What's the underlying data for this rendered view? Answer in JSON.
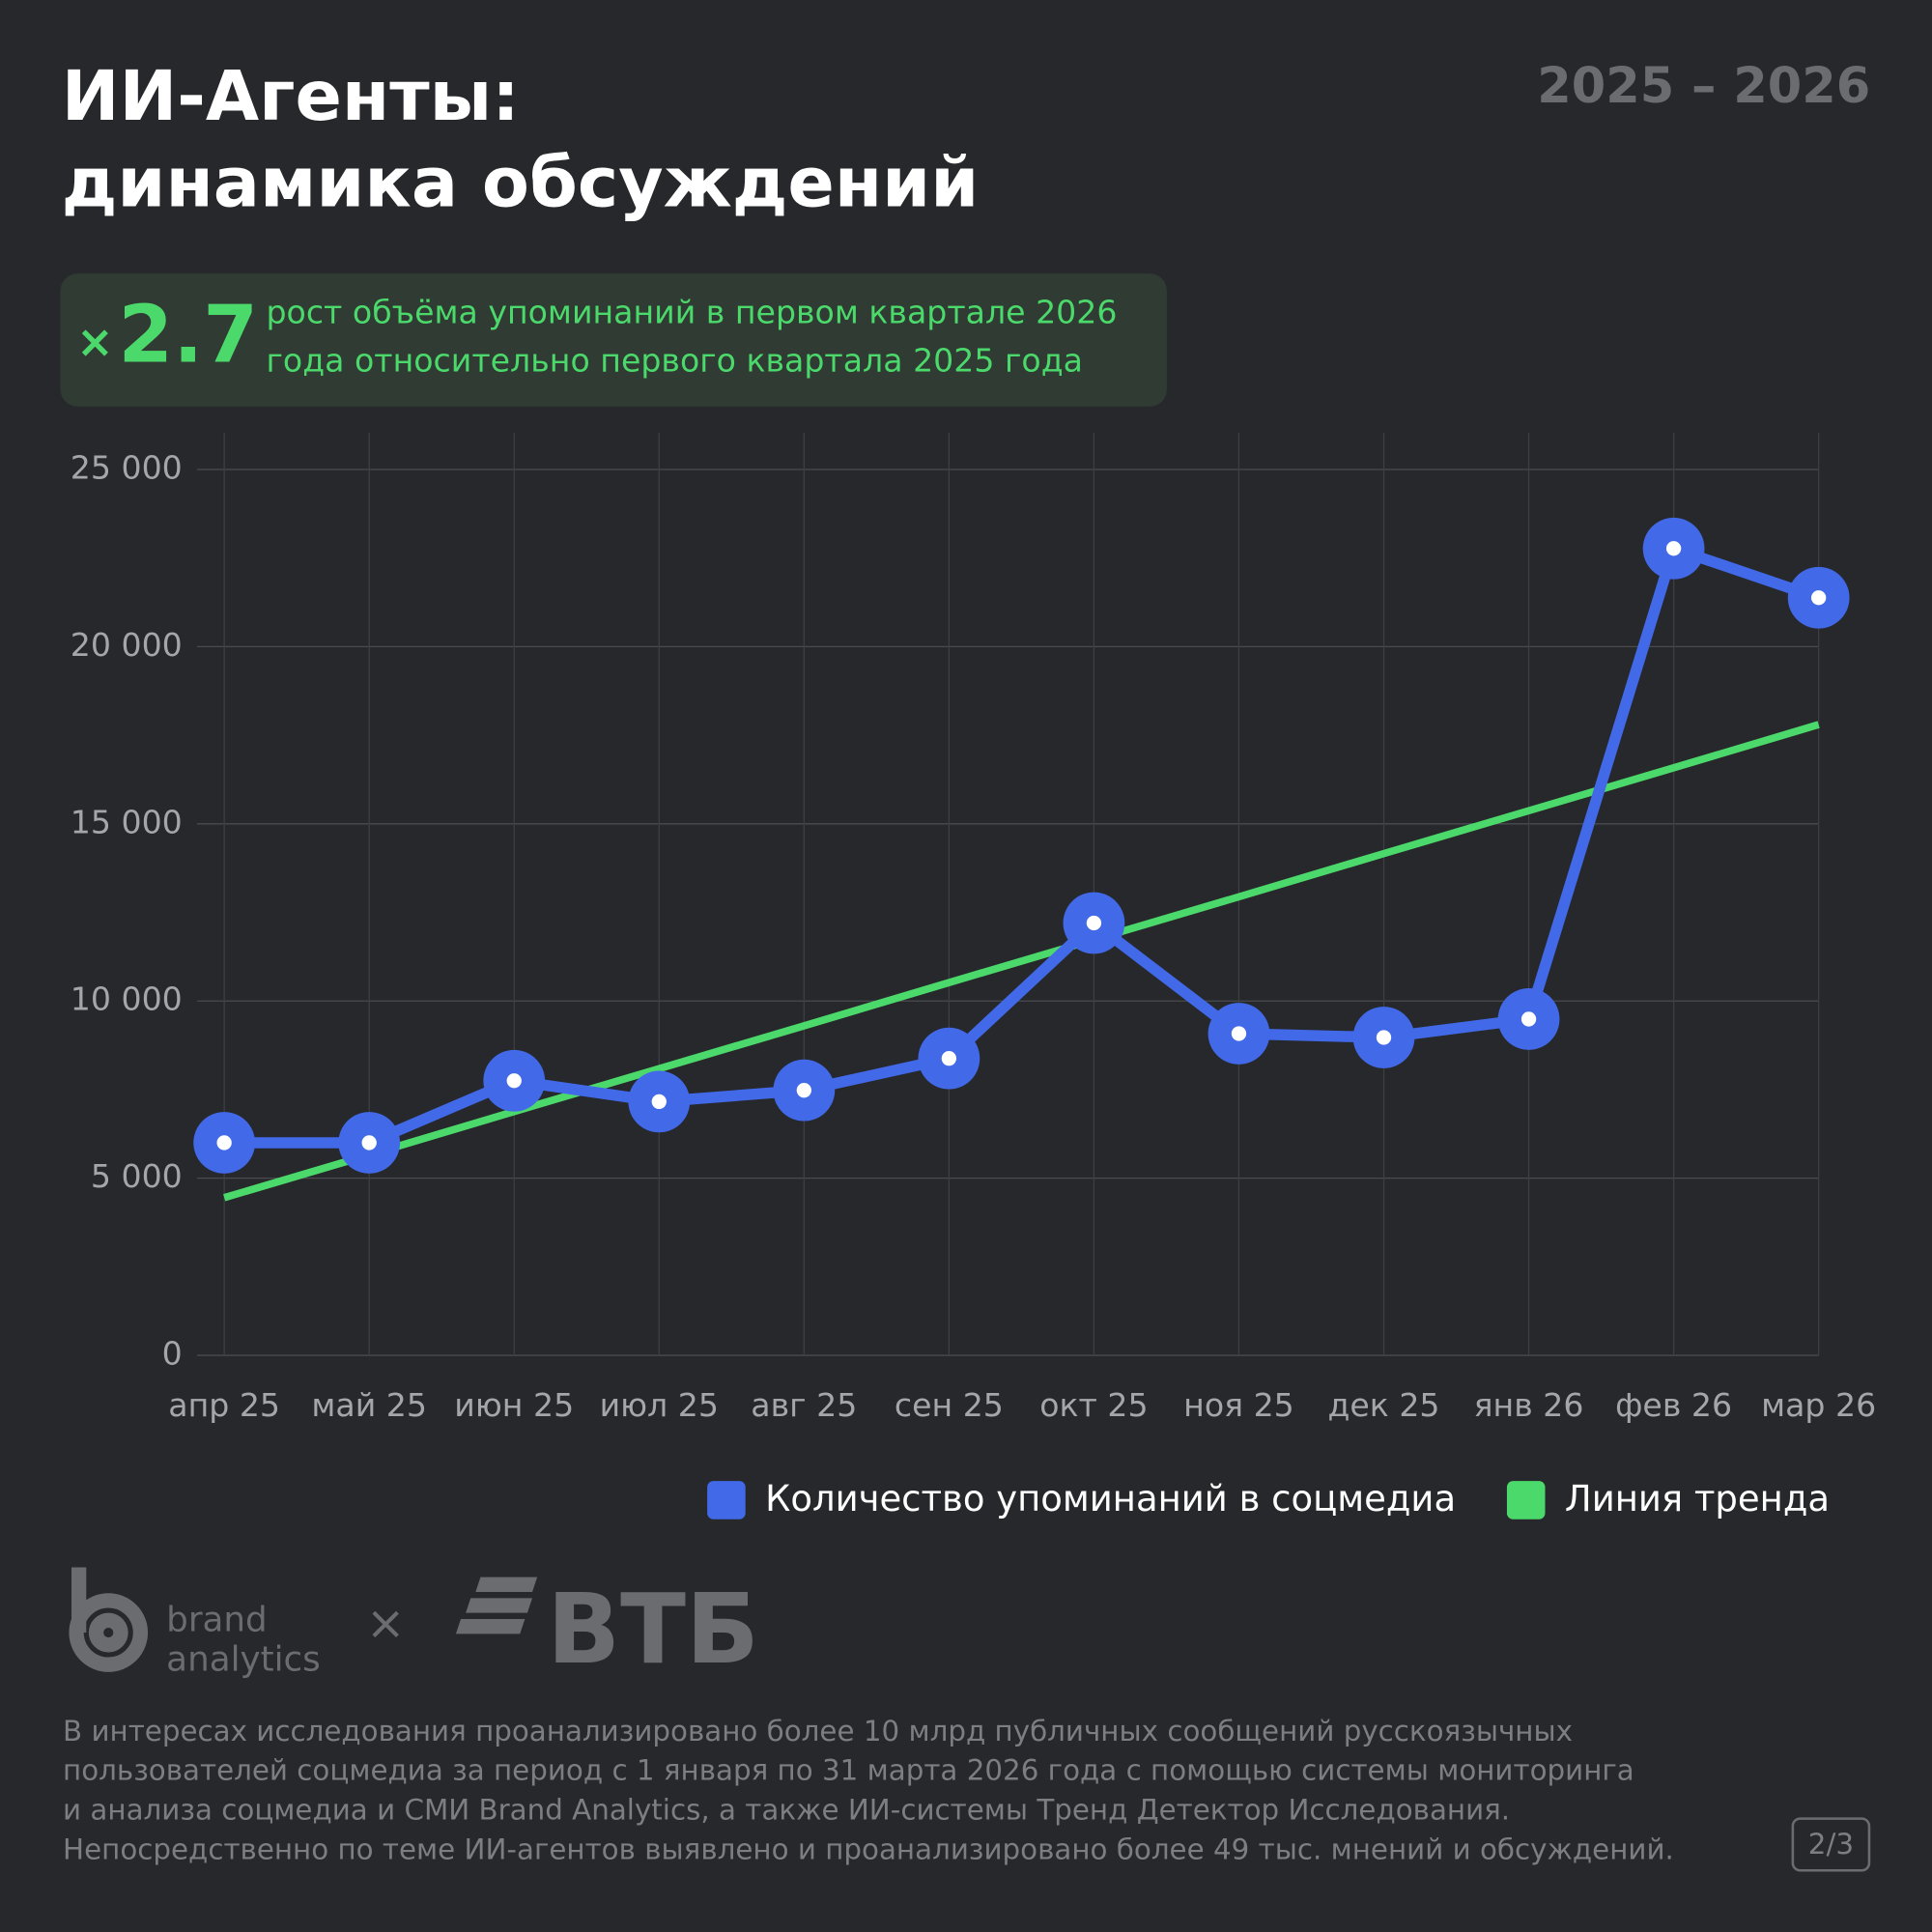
{
  "header": {
    "title_lines": [
      "ИИ-Агенты:",
      "динамика обсуждений"
    ],
    "period": "2025 – 2026"
  },
  "badge": {
    "prefix": "×",
    "value": "2.7",
    "text_lines": [
      "рост объёма упоминаний в первом квартале 2026",
      "года относительно первого квартала 2025 года"
    ]
  },
  "chart_data": {
    "type": "line",
    "categories": [
      "апр 25",
      "май 25",
      "июн 25",
      "июл 25",
      "авг 25",
      "сен 25",
      "окт 25",
      "ноя 25",
      "дек 25",
      "янв 26",
      "фев 26",
      "мар 26"
    ],
    "series": [
      {
        "name": "Количество упоминаний в соцмедиа",
        "color": "#4169e8",
        "values": [
          6000,
          6000,
          7750,
          7160,
          7480,
          8380,
          12200,
          9080,
          8970,
          9490,
          22770,
          21380
        ]
      },
      {
        "name": "Линия тренда",
        "color": "#4cd96b",
        "values": [
          4450,
          5660,
          6880,
          8090,
          9300,
          10520,
          11730,
          12940,
          14160,
          15370,
          16580,
          17800
        ]
      }
    ],
    "ylim": [
      0,
      25000
    ],
    "yticks": [
      0,
      {
        "value": 5000,
        "label": "5 000"
      },
      {
        "value": 10000,
        "label": "10 000"
      },
      {
        "value": 15000,
        "label": "15 000"
      },
      {
        "value": 20000,
        "label": "20 000"
      },
      {
        "value": 25000,
        "label": "25 000"
      }
    ],
    "grid": true,
    "legend": "bottom-right"
  },
  "logos": {
    "brand_lines": [
      "brand",
      "analytics"
    ],
    "cross": "×",
    "bank": "ВТБ"
  },
  "footnote_lines": [
    "В интересах исследования проанализировано более 10 млрд публичных сообщений русскоязычных",
    "пользователей соцмедиа за период с 1 января по 31 марта 2026 года с помощью системы мониторинга",
    "и анализа соцмедиа и СМИ Brand Analytics, а также ИИ-системы Тренд Детектор Исследования.",
    "Непосредственно по теме ИИ-агентов выявлено и проанализировано более 49 тыс. мнений и обсуждений."
  ],
  "page": "2/3"
}
